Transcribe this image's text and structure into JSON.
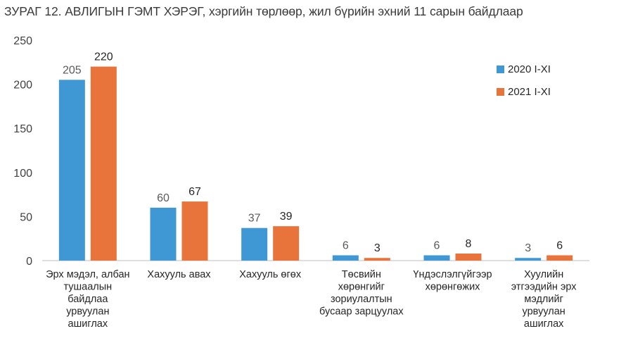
{
  "title": "ЗУРАГ 12. АВЛИГЫН ГЭМТ ХЭРЭГ, хэргийн төрлөөр, жил бүрийн эхний 11 сарын байдлаар",
  "colors": {
    "series_a": "#3f97d3",
    "series_b": "#e8743b",
    "axis": "#bfbfbf"
  },
  "chart_data": {
    "type": "bar",
    "title": "ЗУРАГ 12. АВЛИГЫН ГЭМТ ХЭРЭГ, хэргийн төрлөөр, жил бүрийн эхний 11 сарын байдлаар",
    "categories": [
      "Эрх мэдэл, албан тушаалын байдлаа урвуулан ашиглах",
      "Хахууль авах",
      "Хахууль өгөх",
      "Төсвийн хөрөнгийг зориулалтын бусаар зарцуулах",
      "Үндэслэлгүйгээр хөрөнгөжих",
      "Хуулийн этгээдийн эрх мэдлийг урвуулан ашиглах"
    ],
    "category_lines": [
      [
        "Эрх мэдэл, албан",
        "тушаалын",
        "байдлаа",
        "урвуулан",
        "ашиглах"
      ],
      [
        "Хахууль авах"
      ],
      [
        "Хахууль өгөх"
      ],
      [
        "Төсвийн",
        "хөрөнгийг",
        "зориулалтын",
        "бусаар зарцуулах"
      ],
      [
        "Үндэслэлгүйгээр",
        "хөрөнгөжих"
      ],
      [
        "Хуулийн",
        "этгээдийн эрх",
        "мэдлийг",
        "урвуулан",
        "ашиглах"
      ]
    ],
    "series": [
      {
        "name": "2020 I-XI",
        "values": [
          205,
          60,
          37,
          6,
          6,
          3
        ]
      },
      {
        "name": "2021 I-XI",
        "values": [
          220,
          67,
          39,
          3,
          8,
          6
        ]
      }
    ],
    "yticks": [
      "0",
      "50",
      "100",
      "150",
      "200",
      "250"
    ],
    "ylim": [
      0,
      250
    ],
    "xlabel": "",
    "ylabel": "",
    "grid": false,
    "legend_position": "right"
  }
}
